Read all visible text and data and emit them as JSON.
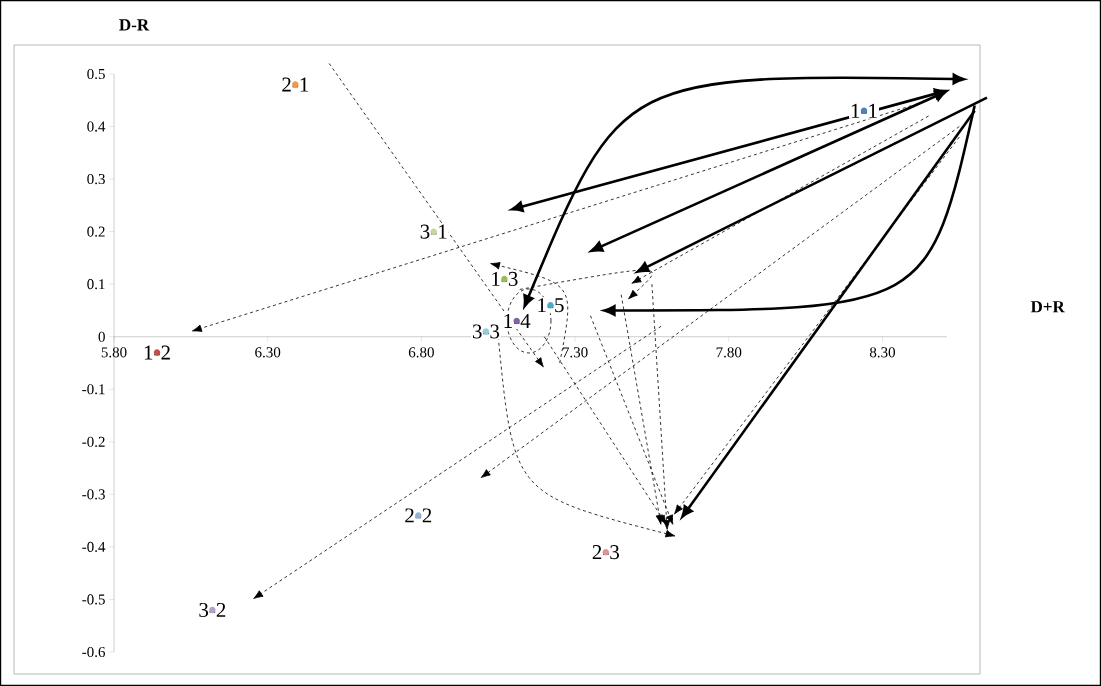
{
  "chart_data": {
    "type": "scatter",
    "xlabel": "D+R",
    "ylabel": "D-R",
    "marker": "circle",
    "xlim": [
      5.8,
      8.51
    ],
    "ylim": [
      -0.6,
      0.5
    ],
    "xticks": [
      {
        "value": 5.8,
        "label": "5.80"
      },
      {
        "value": 6.3,
        "label": "6.30"
      },
      {
        "value": 6.8,
        "label": "6.80"
      },
      {
        "value": 7.3,
        "label": "7.30"
      },
      {
        "value": 7.8,
        "label": "7.80"
      },
      {
        "value": 8.3,
        "label": "8.30"
      }
    ],
    "yticks": [
      -0.6,
      -0.5,
      -0.4,
      -0.3,
      -0.2,
      -0.1,
      0,
      0.1,
      0.2,
      0.3,
      0.4,
      0.5
    ],
    "series": [
      {
        "name": "1-1",
        "color": "#4f81bd",
        "x": [
          8.24
        ],
        "values": [
          0.43
        ]
      },
      {
        "name": "1-2",
        "color": "#c0504d",
        "x": [
          5.94
        ],
        "values": [
          -0.03
        ]
      },
      {
        "name": "1-3",
        "color": "#9bbb59",
        "x": [
          7.07
        ],
        "values": [
          0.11
        ]
      },
      {
        "name": "1-4",
        "color": "#8064a2",
        "x": [
          7.11
        ],
        "values": [
          0.03
        ]
      },
      {
        "name": "1-5",
        "color": "#4bacc6",
        "x": [
          7.22
        ],
        "values": [
          0.06
        ]
      },
      {
        "name": "2-1",
        "color": "#f79646",
        "x": [
          6.39
        ],
        "values": [
          0.48
        ]
      },
      {
        "name": "2-2",
        "color": "#95b3d7",
        "x": [
          6.79
        ],
        "values": [
          -0.34
        ]
      },
      {
        "name": "2-3",
        "color": "#d99694",
        "x": [
          7.4
        ],
        "values": [
          -0.41
        ]
      },
      {
        "name": "3-1",
        "color": "#c3d69b",
        "x": [
          6.84
        ],
        "values": [
          0.2
        ]
      },
      {
        "name": "3-2",
        "color": "#b3a2c7",
        "x": [
          6.12
        ],
        "values": [
          -0.52
        ]
      },
      {
        "name": "3-3",
        "color": "#93cddd",
        "x": [
          7.01
        ],
        "values": [
          0.01
        ]
      }
    ]
  }
}
